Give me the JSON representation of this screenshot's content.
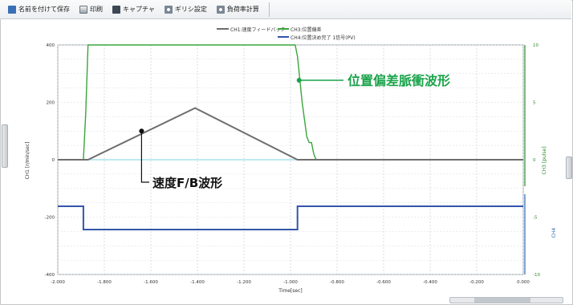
{
  "toolbar": {
    "items": [
      {
        "label": "名前を付けて保存",
        "icon": "save-icon"
      },
      {
        "label": "印刷",
        "icon": "print-icon"
      },
      {
        "label": "キャプチャ",
        "icon": "capture-icon"
      },
      {
        "label": "ギリシ設定",
        "icon": "settings-icon"
      },
      {
        "label": "負荷率計算",
        "icon": "calc-icon"
      }
    ]
  },
  "colors": {
    "speed": "#6e6e6e",
    "position": "#3aa63a",
    "signal": "#3355aa",
    "axis_right": "#2e8b2e",
    "callout": "#1aa34a"
  },
  "chart_data": {
    "type": "line",
    "legend": [
      {
        "name": "CH1:速度フィードバック",
        "color": "#6e6e6e"
      },
      {
        "name": "CH3:位置偏差",
        "color": "#3aa63a"
      },
      {
        "name": "CH4:位置決め完了 1信号(PV)",
        "color": "#3355aa"
      }
    ],
    "xlabel": "Time[sec]",
    "xlim": [
      -2.0,
      0.0
    ],
    "xticks": [
      "-2.000",
      "-1.800",
      "-1.600",
      "-1.400",
      "-1.200",
      "-1.000",
      "-0.800",
      "-0.600",
      "-0.400",
      "-0.200",
      "0.000"
    ],
    "ylabel_left": "CH1 [r/min/sec]",
    "ylabel_right": "CH3 [pulse]",
    "ylabel_right2": "CH4",
    "yticks_left": [
      "400",
      "200",
      "0",
      "-200",
      "-400"
    ],
    "yticks_right": [
      "10",
      "5",
      "0",
      "-5",
      "-10"
    ],
    "series": [
      {
        "name": "CH1:速度フィードバック",
        "x": [
          -2.0,
          -1.87,
          -1.41,
          -0.97,
          0.0
        ],
        "y": [
          0,
          0,
          180,
          0,
          0
        ]
      },
      {
        "name": "CH3:位置偏差",
        "x": [
          -2.0,
          -1.89,
          -1.88,
          -1.87,
          -1.86,
          -1.85,
          -0.98,
          -0.97,
          -0.95,
          -0.93,
          -0.92,
          -0.91,
          -0.9,
          -0.89,
          0.0
        ],
        "y": [
          0,
          0,
          4,
          10,
          12,
          12,
          12,
          9,
          5,
          2,
          1.5,
          1.5,
          0.5,
          0,
          0
        ]
      },
      {
        "name": "CH4:位置決め完了 1信号(PV)",
        "x": [
          -2.0,
          -1.89,
          -1.89,
          -0.97,
          -0.97,
          0.0
        ],
        "y": [
          1,
          1,
          0,
          0,
          1,
          1
        ]
      }
    ],
    "annotations": [
      {
        "text": "位置偏差脈衝波形",
        "target": "CH3:位置偏差"
      },
      {
        "text": "速度F/B波形",
        "target": "CH1:速度フィードバック"
      }
    ]
  }
}
